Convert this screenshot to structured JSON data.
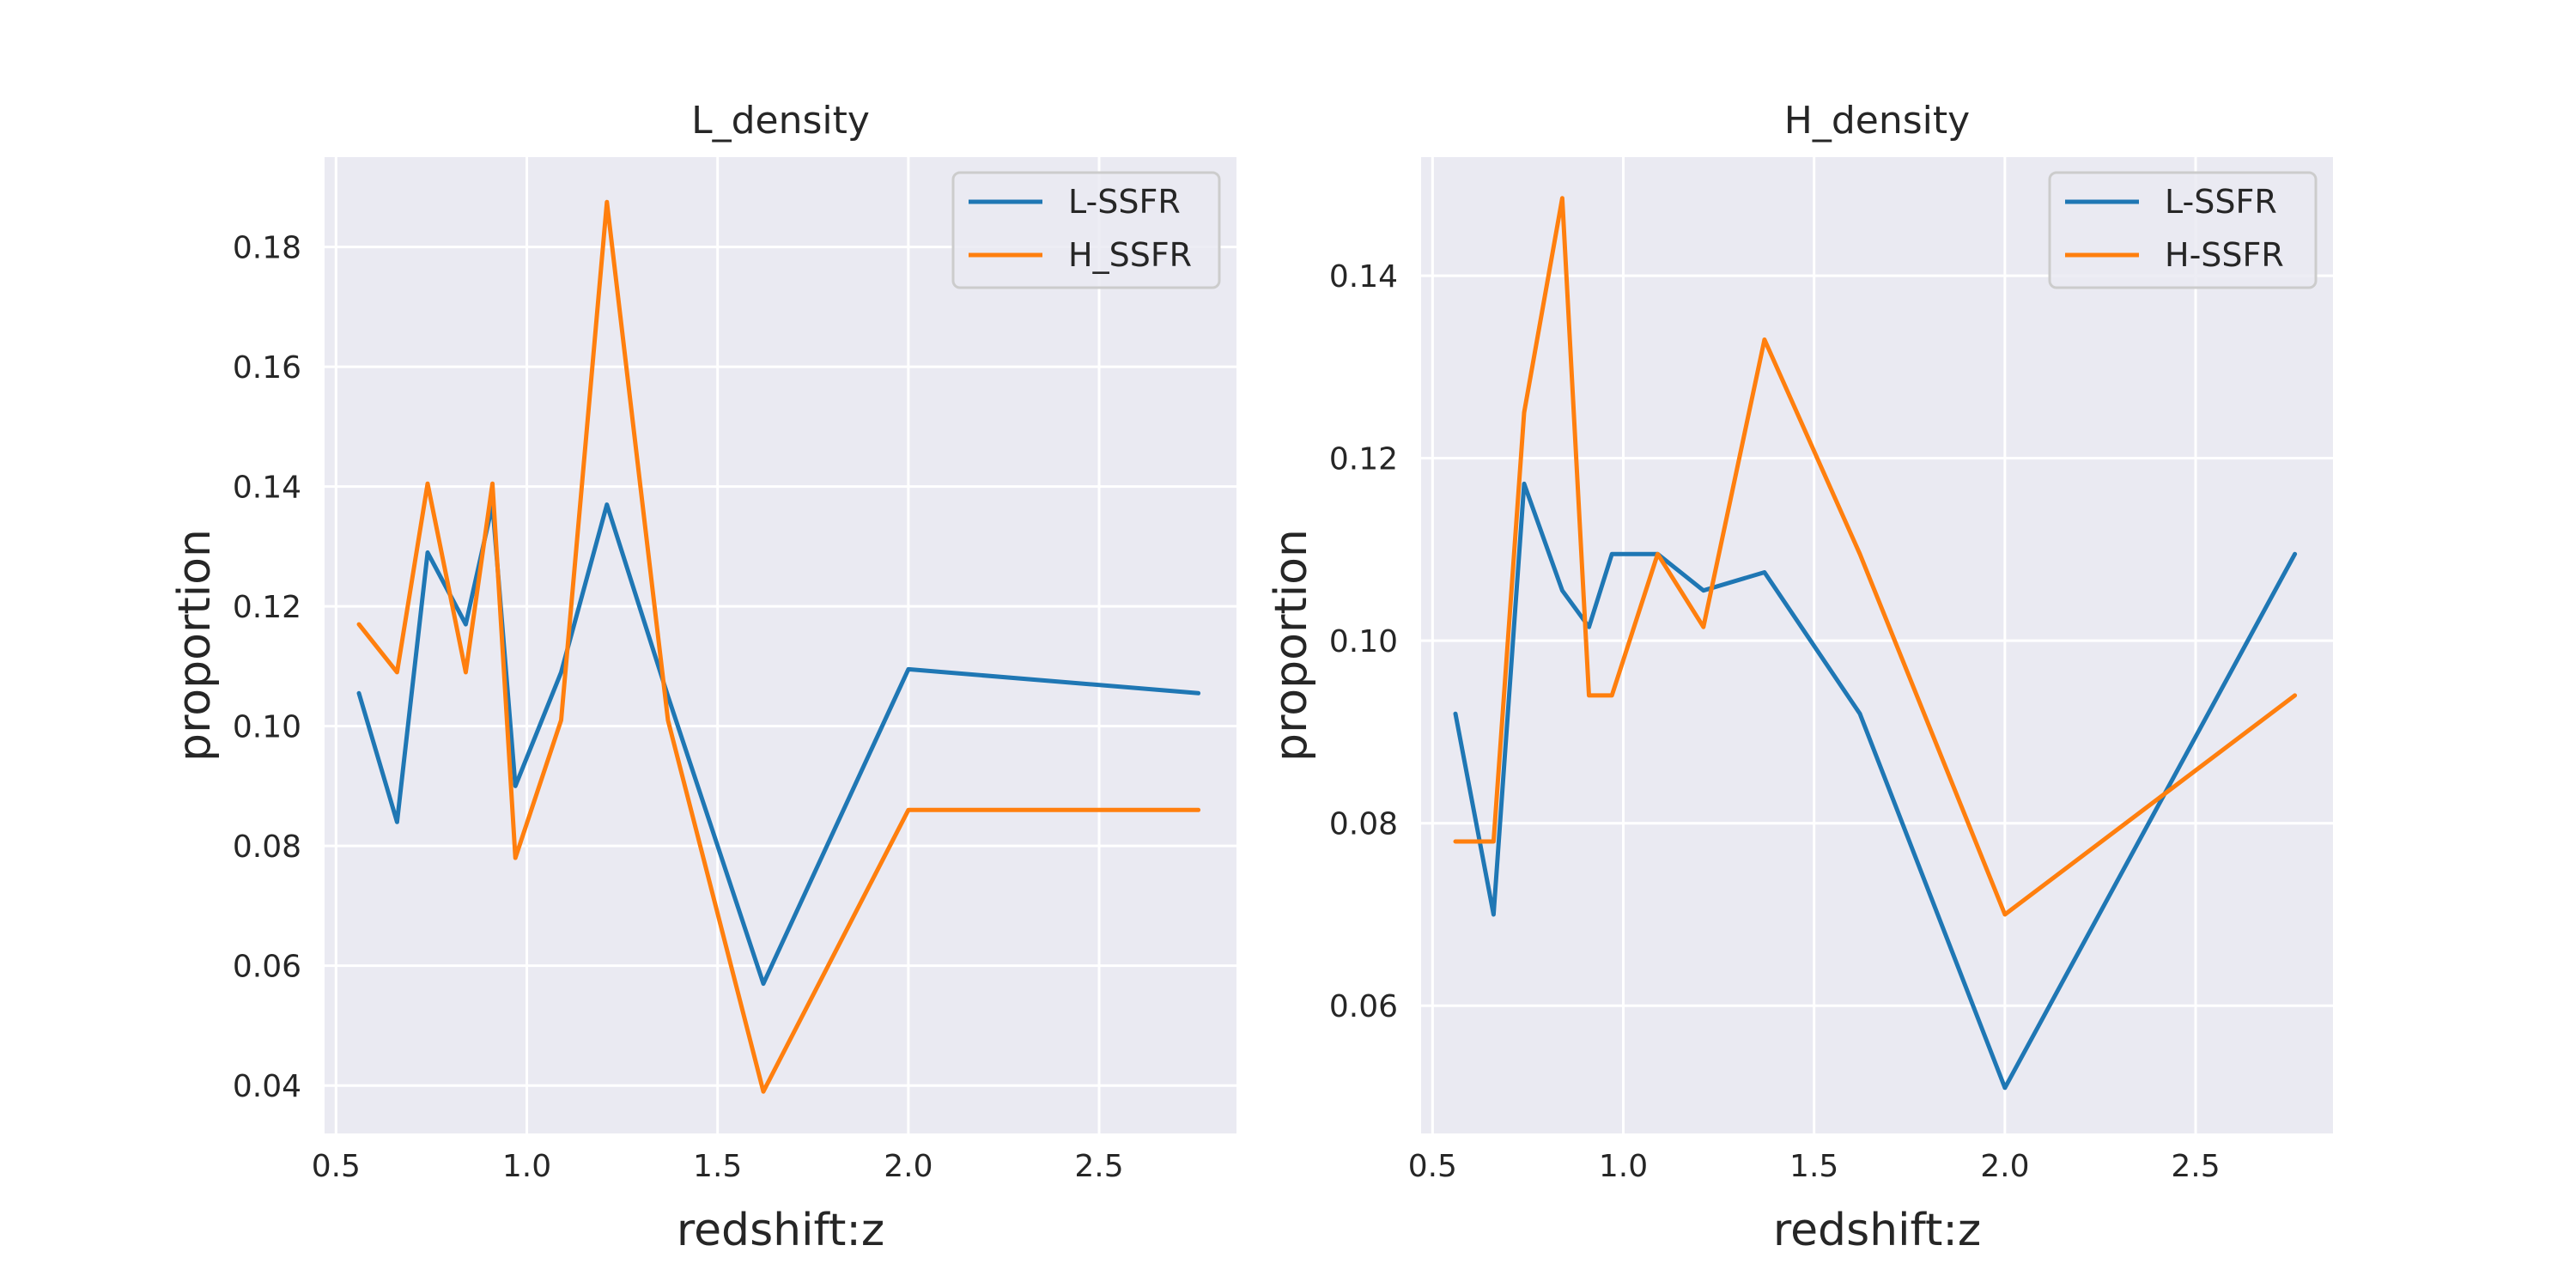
{
  "chart_data": [
    {
      "type": "line",
      "title": "L_density",
      "xlabel": "redshift:z",
      "ylabel": "proportion",
      "xlim": [
        0.47,
        2.86
      ],
      "ylim": [
        0.032,
        0.195
      ],
      "xticks": [
        0.5,
        1.0,
        1.5,
        2.0,
        2.5
      ],
      "xtick_labels": [
        "0.5",
        "1.0",
        "1.5",
        "2.0",
        "2.5"
      ],
      "yticks": [
        0.04,
        0.06,
        0.08,
        0.1,
        0.12,
        0.14,
        0.16,
        0.18
      ],
      "ytick_labels": [
        "0.04",
        "0.06",
        "0.08",
        "0.10",
        "0.12",
        "0.14",
        "0.16",
        "0.18"
      ],
      "grid": true,
      "legend_position": "top-right",
      "x": [
        0.56,
        0.66,
        0.74,
        0.84,
        0.91,
        0.97,
        1.09,
        1.21,
        1.37,
        1.62,
        2.0,
        2.76
      ],
      "series": [
        {
          "name": "L-SSFR",
          "color": "#1f77b4",
          "values": [
            0.1055,
            0.084,
            0.129,
            0.117,
            0.137,
            0.09,
            0.109,
            0.137,
            0.105,
            0.057,
            0.1095,
            0.1055
          ]
        },
        {
          "name": "H_SSFR",
          "color": "#ff7f0e",
          "values": [
            0.117,
            0.109,
            0.1405,
            0.109,
            0.1405,
            0.078,
            0.101,
            0.1875,
            0.101,
            0.039,
            0.086,
            0.086
          ]
        }
      ]
    },
    {
      "type": "line",
      "title": "H_density",
      "xlabel": "redshift:z",
      "ylabel": "proportion",
      "xlim": [
        0.47,
        2.86
      ],
      "ylim": [
        0.046,
        0.153
      ],
      "xticks": [
        0.5,
        1.0,
        1.5,
        2.0,
        2.5
      ],
      "xtick_labels": [
        "0.5",
        "1.0",
        "1.5",
        "2.0",
        "2.5"
      ],
      "yticks": [
        0.06,
        0.08,
        0.1,
        0.12,
        0.14
      ],
      "ytick_labels": [
        "0.06",
        "0.08",
        "0.10",
        "0.12",
        "0.14"
      ],
      "grid": true,
      "legend_position": "top-right",
      "x": [
        0.56,
        0.66,
        0.74,
        0.84,
        0.91,
        0.97,
        1.09,
        1.21,
        1.37,
        1.62,
        2.0,
        2.76
      ],
      "series": [
        {
          "name": "L-SSFR",
          "color": "#1f77b4",
          "values": [
            0.092,
            0.07,
            0.1172,
            0.1055,
            0.1015,
            0.1095,
            0.1095,
            0.1055,
            0.1075,
            0.092,
            0.051,
            0.1095
          ]
        },
        {
          "name": "H-SSFR",
          "color": "#ff7f0e",
          "values": [
            0.078,
            0.078,
            0.125,
            0.1485,
            0.094,
            0.094,
            0.1095,
            0.1015,
            0.133,
            0.1095,
            0.07,
            0.094
          ]
        }
      ]
    }
  ]
}
